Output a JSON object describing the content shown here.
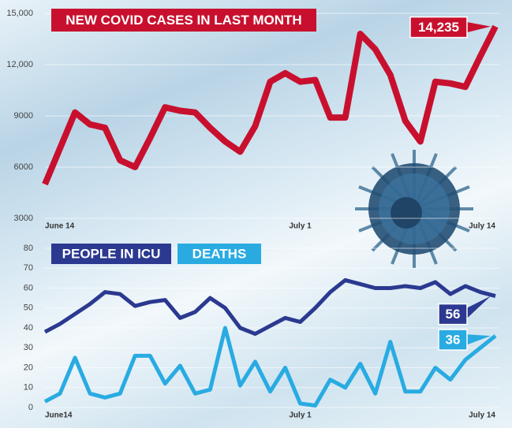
{
  "chart_data": [
    {
      "type": "line",
      "title": "NEW COVID CASES IN LAST MONTH",
      "categories": [
        "June 14",
        null,
        null,
        null,
        null,
        null,
        null,
        null,
        null,
        null,
        null,
        null,
        null,
        null,
        null,
        null,
        null,
        "July 1",
        null,
        null,
        null,
        null,
        null,
        null,
        null,
        null,
        null,
        null,
        null,
        null,
        "July 14"
      ],
      "series": [
        {
          "color": "#c8102e",
          "values": [
            5000,
            7100,
            9200,
            8500,
            8300,
            6400,
            6000,
            7700,
            9500,
            9300,
            9200,
            8300,
            7500,
            6900,
            8400,
            11000,
            11500,
            11000,
            11100,
            8900,
            8900,
            13800,
            12900,
            11400,
            8700,
            7500,
            11000,
            10900,
            10700,
            12500,
            14235
          ],
          "value_labels": [
            null,
            null,
            null,
            null,
            null,
            null,
            null,
            null,
            null,
            null,
            null,
            null,
            null,
            null,
            null,
            null,
            null,
            null,
            null,
            null,
            null,
            null,
            null,
            null,
            null,
            null,
            null,
            null,
            null,
            null,
            "14,235"
          ]
        }
      ],
      "ylim": [
        3000,
        15000
      ],
      "yticks": [
        3000,
        6000,
        9000,
        {
          "value": 12000,
          "label": "12,000"
        },
        {
          "value": 15000,
          "label": "15,000"
        }
      ]
    },
    {
      "type": "line",
      "categories": [
        "June14",
        null,
        null,
        null,
        null,
        null,
        null,
        null,
        null,
        null,
        null,
        null,
        null,
        null,
        null,
        null,
        null,
        "July 1",
        null,
        null,
        null,
        null,
        null,
        null,
        null,
        null,
        null,
        null,
        null,
        null,
        "July 14"
      ],
      "series": [
        {
          "name": "PEOPLE IN ICU",
          "color": "#2b3990",
          "values": [
            38,
            42,
            47,
            52,
            58,
            57,
            51,
            53,
            54,
            45,
            48,
            55,
            50,
            40,
            37,
            41,
            45,
            43,
            50,
            58,
            64,
            62,
            60,
            60,
            61,
            60,
            63,
            57,
            61,
            58,
            56
          ]
        },
        {
          "name": "DEATHS",
          "color": "#29abe2",
          "values": [
            3,
            7,
            25,
            7,
            5,
            7,
            26,
            26,
            12,
            21,
            7,
            9,
            40,
            11,
            23,
            8,
            20,
            2,
            1,
            14,
            10,
            22,
            7,
            33,
            8,
            8,
            20,
            14,
            24,
            30,
            36
          ]
        }
      ],
      "ylim": [
        0,
        80
      ],
      "yticks": [
        0,
        10,
        20,
        30,
        40,
        50,
        60,
        70,
        80
      ]
    }
  ]
}
